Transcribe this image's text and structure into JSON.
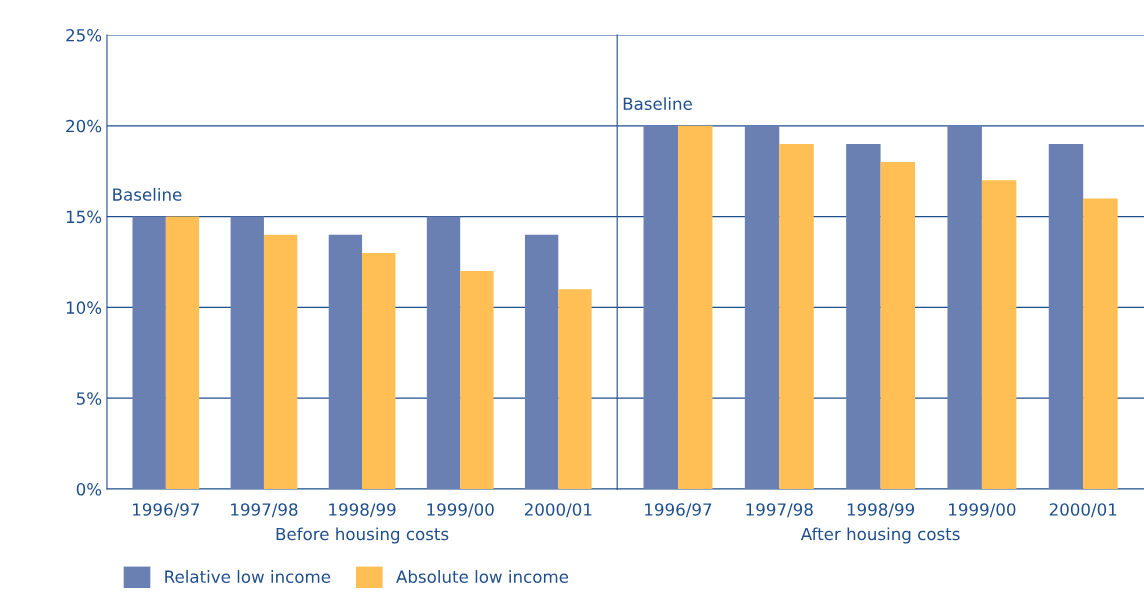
{
  "chart_data": [
    {
      "type": "bar",
      "categories": [
        "1996/97",
        "1997/98",
        "1998/99",
        "1999/00",
        "2000/01"
      ],
      "xlabel": "Before housing costs",
      "series": [
        {
          "name": "Relative low income",
          "color": "#6a80b3",
          "values": [
            15,
            15,
            14,
            15,
            14
          ]
        },
        {
          "name": "Absolute low income",
          "color": "#ffbf55",
          "values": [
            15,
            14,
            13,
            12,
            11
          ]
        }
      ],
      "ylim": [
        0,
        25
      ],
      "yticks": [
        {
          "value": 0,
          "label": "0%"
        },
        {
          "value": 5,
          "label": "5%"
        },
        {
          "value": 10,
          "label": "10%"
        },
        {
          "value": 15,
          "label": "15%"
        },
        {
          "value": 20,
          "label": "20%"
        },
        {
          "value": 25,
          "label": "25%"
        }
      ],
      "grid": "y",
      "legend": "bottom left",
      "annotations": [
        {
          "text": "Baseline",
          "x": "1996/97",
          "y": 15
        }
      ]
    },
    {
      "type": "bar",
      "categories": [
        "1996/97",
        "1997/98",
        "1998/99",
        "1999/00",
        "2000/01"
      ],
      "xlabel": "After housing costs",
      "series": [
        {
          "color": "#6a80b3",
          "values": [
            20,
            20,
            19,
            20,
            19
          ]
        },
        {
          "color": "#ffbf55",
          "values": [
            20,
            19,
            18,
            17,
            16
          ]
        }
      ],
      "ylim": [
        0,
        25
      ],
      "yticks": [
        0,
        5,
        10,
        15,
        20,
        25
      ],
      "grid": "y",
      "tick_labels": "x",
      "annotations": [
        {
          "text": "Baseline",
          "x": "1996/97",
          "y": 20
        }
      ]
    }
  ]
}
